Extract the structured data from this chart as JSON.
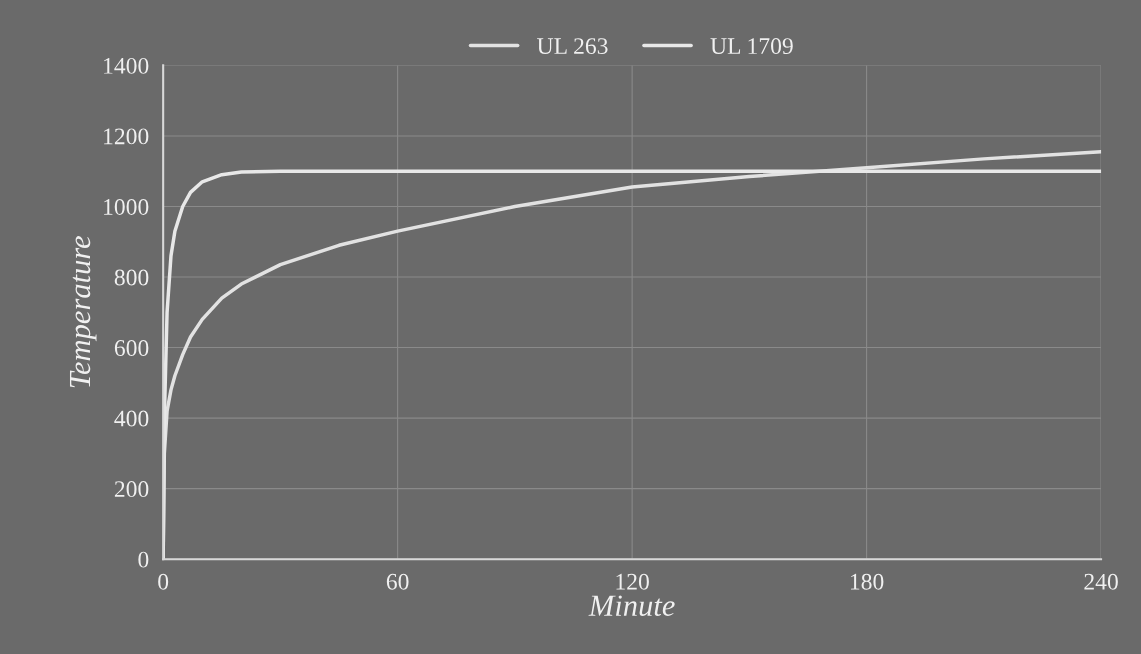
{
  "chart_data": {
    "type": "line",
    "xlabel": "Minute",
    "ylabel": "Temperature",
    "xlim": [
      0,
      240
    ],
    "xticks": [
      0,
      60,
      120,
      180,
      240
    ],
    "ylim": [
      0,
      1400
    ],
    "yticks": [
      0,
      200,
      400,
      600,
      800,
      1000,
      1200,
      1400
    ],
    "grid": true,
    "legend": "top",
    "line_style": "solid",
    "series": [
      {
        "name": "UL 263",
        "color": "#e2e2e2",
        "x": [
          0,
          0.3,
          1,
          2,
          3,
          5,
          7,
          10,
          15,
          20,
          30,
          45,
          60,
          90,
          120,
          150,
          180,
          210,
          240
        ],
        "values": [
          0,
          300,
          420,
          480,
          520,
          580,
          630,
          680,
          740,
          780,
          835,
          890,
          930,
          1000,
          1055,
          1085,
          1110,
          1135,
          1155
        ]
      },
      {
        "name": "UL 1709",
        "color": "#e8e8e8",
        "x": [
          0,
          0.3,
          1,
          2,
          3,
          5,
          7,
          10,
          15,
          20,
          30,
          240
        ],
        "values": [
          0,
          400,
          700,
          860,
          930,
          1000,
          1040,
          1070,
          1090,
          1098,
          1100,
          1100
        ]
      }
    ]
  }
}
